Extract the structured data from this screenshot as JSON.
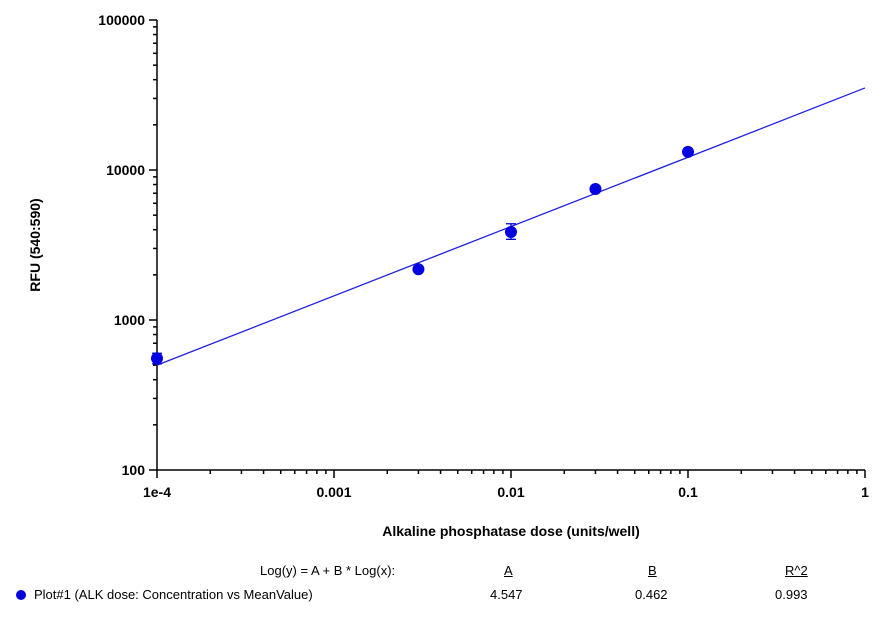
{
  "chart_data": {
    "type": "scatter",
    "title": "",
    "xlabel": "Alkaline phosphatase dose (units/well)",
    "ylabel": "RFU (540:590)",
    "xscale": "log",
    "yscale": "log",
    "xlim": [
      0.0001,
      1
    ],
    "ylim": [
      100,
      100000
    ],
    "x_tick_labels": [
      "1e-4",
      "0.001",
      "0.01",
      "0.1",
      "1"
    ],
    "x_ticks": [
      0.0001,
      0.001,
      0.01,
      0.1,
      1
    ],
    "y_tick_labels": [
      "100",
      "1000",
      "10000",
      "100000"
    ],
    "y_ticks": [
      100,
      1000,
      10000,
      100000
    ],
    "grid": false,
    "series": [
      {
        "name": "Plot#1 (ALK dose: Concentration vs MeanValue)",
        "color": "#0000e0",
        "x": [
          0.0001,
          0.003,
          0.01,
          0.03,
          0.1
        ],
        "y": [
          555,
          2180,
          3860,
          7470,
          13200
        ],
        "y_err_low": [
          510,
          2100,
          3450,
          7300,
          12900
        ],
        "y_err_high": [
          600,
          2260,
          4380,
          7650,
          13500
        ]
      }
    ],
    "fit": {
      "equation_label": "Log(y) = A + B * Log(x):",
      "headers": [
        "A",
        "B",
        "R^2"
      ],
      "A": 4.547,
      "B": 0.462,
      "R2": 0.993,
      "values_text": [
        "4.547",
        "0.462",
        "0.993"
      ],
      "color": "#2020e0"
    },
    "legend_placement": "bottom"
  }
}
